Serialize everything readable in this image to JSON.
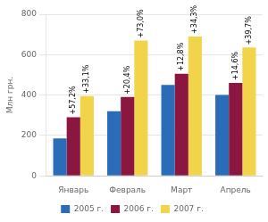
{
  "chart_data": {
    "type": "bar",
    "categories": [
      "Январь",
      "Февраль",
      "Март",
      "Апрель"
    ],
    "series": [
      {
        "name": "2005 г.",
        "color": "#2B6CB8",
        "values": [
          185,
          320,
          450,
          400
        ]
      },
      {
        "name": "2006 г.",
        "color": "#8B1740",
        "values": [
          290,
          390,
          505,
          460
        ],
        "annotations": [
          "+57,2%",
          "+20,4%",
          "+12,8%",
          "+14,6%"
        ]
      },
      {
        "name": "2007 г.",
        "color": "#F2D44A",
        "values": [
          395,
          670,
          690,
          635
        ],
        "annotations": [
          "+33,1%",
          "+73,0%",
          "+34,3%",
          "+39,7%"
        ]
      }
    ],
    "ylabel": "Млн грн.",
    "ylim": [
      0,
      800
    ],
    "yticks": [
      0,
      200,
      400,
      600,
      800
    ],
    "grid": true,
    "legend": "bottom"
  }
}
